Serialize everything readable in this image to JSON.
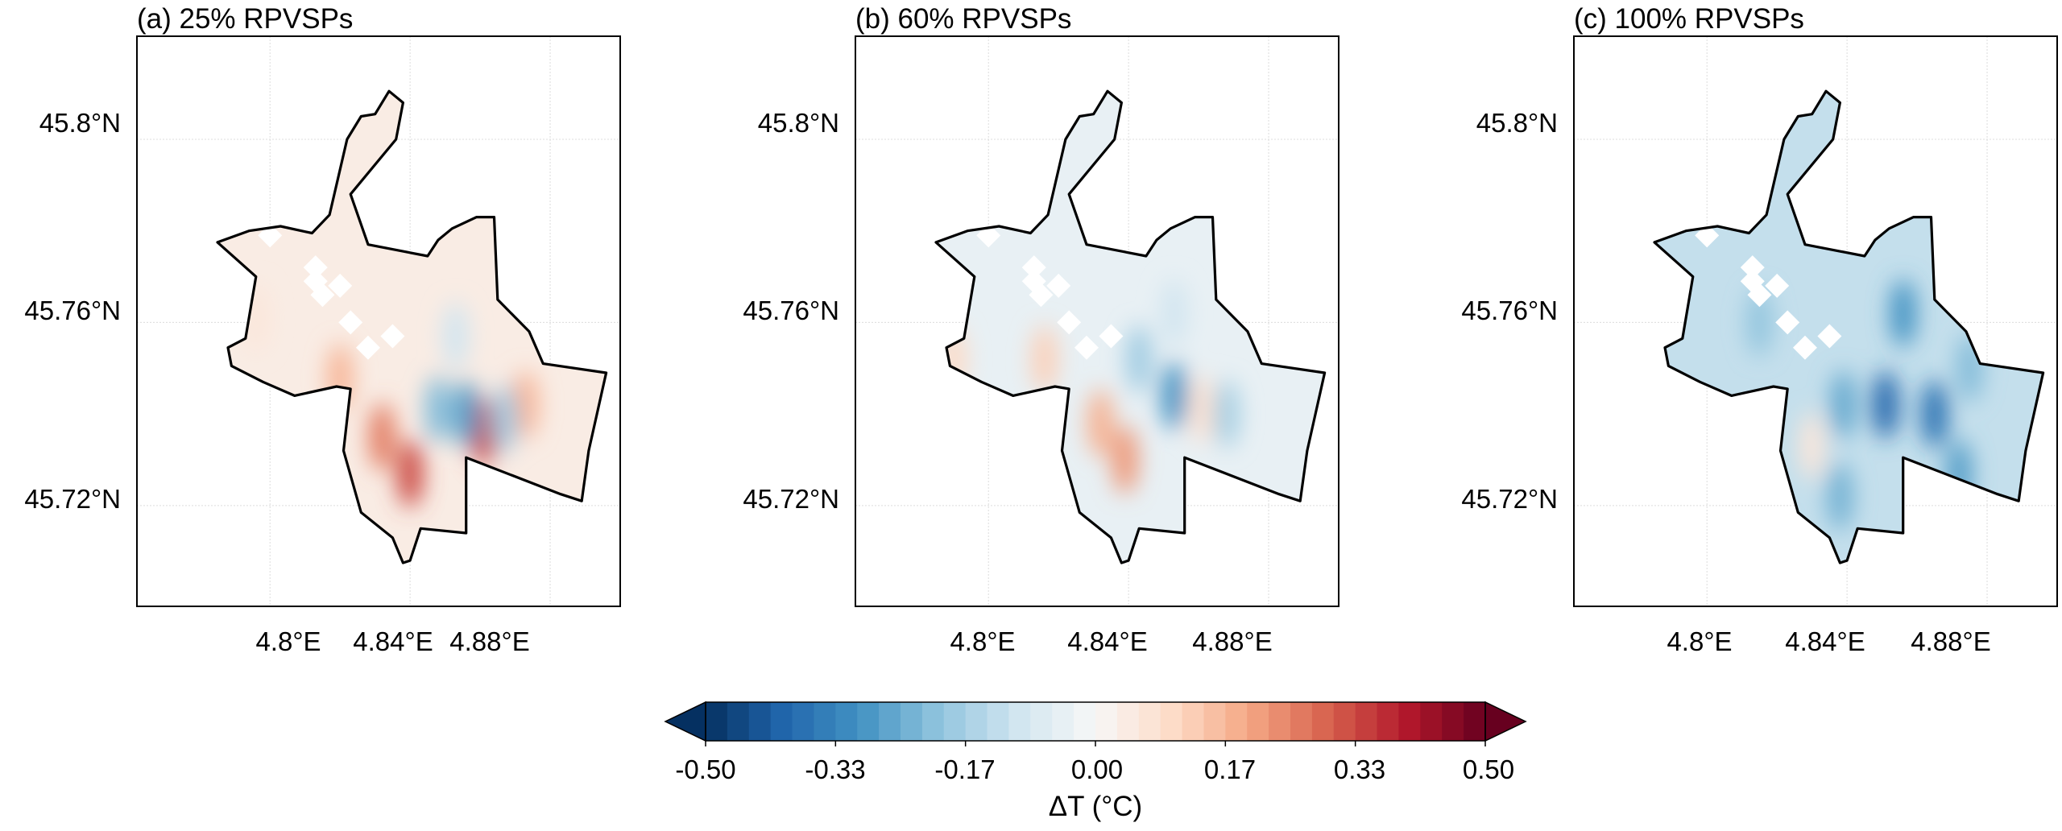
{
  "panels": [
    {
      "title": "(a) 25% RPVSPs",
      "yticks": [
        "45.8°N",
        "45.76°N",
        "45.72°N"
      ],
      "xticks": [
        "4.8°E",
        "4.84°E",
        "4.88°E"
      ],
      "mean_dT": 0.04,
      "hotspots": [
        {
          "lon": 4.84,
          "lat": 45.727,
          "dT": 0.33
        },
        {
          "lon": 4.832,
          "lat": 45.735,
          "dT": 0.26
        },
        {
          "lon": 4.861,
          "lat": 45.736,
          "dT": 0.33
        },
        {
          "lon": 4.873,
          "lat": 45.742,
          "dT": 0.17
        },
        {
          "lon": 4.848,
          "lat": 45.741,
          "dT": -0.22
        },
        {
          "lon": 4.856,
          "lat": 45.74,
          "dT": -0.28
        },
        {
          "lon": 4.867,
          "lat": 45.739,
          "dT": -0.18
        },
        {
          "lon": 4.796,
          "lat": 45.761,
          "dT": 0.06
        },
        {
          "lon": 4.853,
          "lat": 45.757,
          "dT": -0.1
        },
        {
          "lon": 4.82,
          "lat": 45.748,
          "dT": 0.17
        }
      ]
    },
    {
      "title": "(b) 60% RPVSPs",
      "yticks": [
        "45.8°N",
        "45.76°N",
        "45.72°N"
      ],
      "xticks": [
        "4.8°E",
        "4.84°E",
        "4.88°E"
      ],
      "mean_dT": -0.04,
      "hotspots": [
        {
          "lon": 4.839,
          "lat": 45.73,
          "dT": 0.22
        },
        {
          "lon": 4.832,
          "lat": 45.738,
          "dT": 0.18
        },
        {
          "lon": 4.853,
          "lat": 45.744,
          "dT": -0.3
        },
        {
          "lon": 4.861,
          "lat": 45.741,
          "dT": 0.08
        },
        {
          "lon": 4.868,
          "lat": 45.74,
          "dT": -0.17
        },
        {
          "lon": 4.843,
          "lat": 45.752,
          "dT": -0.18
        },
        {
          "lon": 4.816,
          "lat": 45.752,
          "dT": 0.12
        },
        {
          "lon": 4.79,
          "lat": 45.752,
          "dT": 0.1
        },
        {
          "lon": 4.853,
          "lat": 45.762,
          "dT": -0.1
        }
      ]
    },
    {
      "title": "(c) 100% RPVSPs",
      "yticks": [
        "45.8°N",
        "45.76°N",
        "45.72°N"
      ],
      "xticks": [
        "4.8°E",
        "4.84°E",
        "4.88°E"
      ],
      "mean_dT": -0.12,
      "hotspots": [
        {
          "lon": 4.851,
          "lat": 45.742,
          "dT": -0.4
        },
        {
          "lon": 4.865,
          "lat": 45.74,
          "dT": -0.38
        },
        {
          "lon": 4.856,
          "lat": 45.762,
          "dT": -0.3
        },
        {
          "lon": 4.839,
          "lat": 45.742,
          "dT": -0.26
        },
        {
          "lon": 4.83,
          "lat": 45.733,
          "dT": 0.06
        },
        {
          "lon": 4.875,
          "lat": 45.75,
          "dT": -0.22
        },
        {
          "lon": 4.815,
          "lat": 45.76,
          "dT": -0.2
        },
        {
          "lon": 4.838,
          "lat": 45.722,
          "dT": -0.24
        },
        {
          "lon": 4.872,
          "lat": 45.727,
          "dT": -0.28
        }
      ]
    }
  ],
  "boundary": [
    [
      4.834,
      45.8105
    ],
    [
      4.838,
      45.808
    ],
    [
      4.836,
      45.8
    ],
    [
      4.823,
      45.788
    ],
    [
      4.828,
      45.777
    ],
    [
      4.845,
      45.7745
    ],
    [
      4.848,
      45.778
    ],
    [
      4.852,
      45.7805
    ],
    [
      4.859,
      45.783
    ],
    [
      4.864,
      45.783
    ],
    [
      4.865,
      45.765
    ],
    [
      4.874,
      45.758
    ],
    [
      4.878,
      45.751
    ],
    [
      4.896,
      45.749
    ],
    [
      4.891,
      45.732
    ],
    [
      4.889,
      45.721
    ],
    [
      4.883,
      45.7225
    ],
    [
      4.856,
      45.7305
    ],
    [
      4.856,
      45.714
    ],
    [
      4.843,
      45.715
    ],
    [
      4.84,
      45.708
    ],
    [
      4.838,
      45.7075
    ],
    [
      4.835,
      45.713
    ],
    [
      4.826,
      45.7185
    ],
    [
      4.821,
      45.732
    ],
    [
      4.823,
      45.7455
    ],
    [
      4.819,
      45.746
    ],
    [
      4.807,
      45.744
    ],
    [
      4.798,
      45.747
    ],
    [
      4.789,
      45.7505
    ],
    [
      4.788,
      45.7545
    ],
    [
      4.793,
      45.7565
    ],
    [
      4.796,
      45.77
    ],
    [
      4.785,
      45.7775
    ],
    [
      4.794,
      45.78
    ],
    [
      4.803,
      45.781
    ],
    [
      4.812,
      45.7795
    ],
    [
      4.817,
      45.7835
    ],
    [
      4.822,
      45.8
    ],
    [
      4.826,
      45.805
    ],
    [
      4.83,
      45.8055
    ]
  ],
  "gaps": [
    [
      4.8,
      45.779
    ],
    [
      4.813,
      45.772
    ],
    [
      4.813,
      45.769
    ],
    [
      4.82,
      45.768
    ],
    [
      4.815,
      45.766
    ],
    [
      4.823,
      45.76
    ],
    [
      4.835,
      45.757
    ],
    [
      4.828,
      45.7545
    ]
  ],
  "colorbar": {
    "ticks": [
      "-0.50",
      "-0.33",
      "-0.17",
      "0.00",
      "0.17",
      "0.33",
      "0.50"
    ],
    "min": -0.5,
    "max": 0.5,
    "levels": 36,
    "extend": "both",
    "label": "ΔT (°C)",
    "cmap": "RdBu_r",
    "cmap_stops": [
      "#053061",
      "#2166ac",
      "#4393c3",
      "#92c5de",
      "#d1e5f0",
      "#f7f7f7",
      "#fddbc7",
      "#f4a582",
      "#d6604d",
      "#b2182b",
      "#67001f"
    ]
  },
  "map_extent": {
    "lon": [
      4.762,
      4.9
    ],
    "lat": [
      45.698,
      45.8225
    ]
  }
}
